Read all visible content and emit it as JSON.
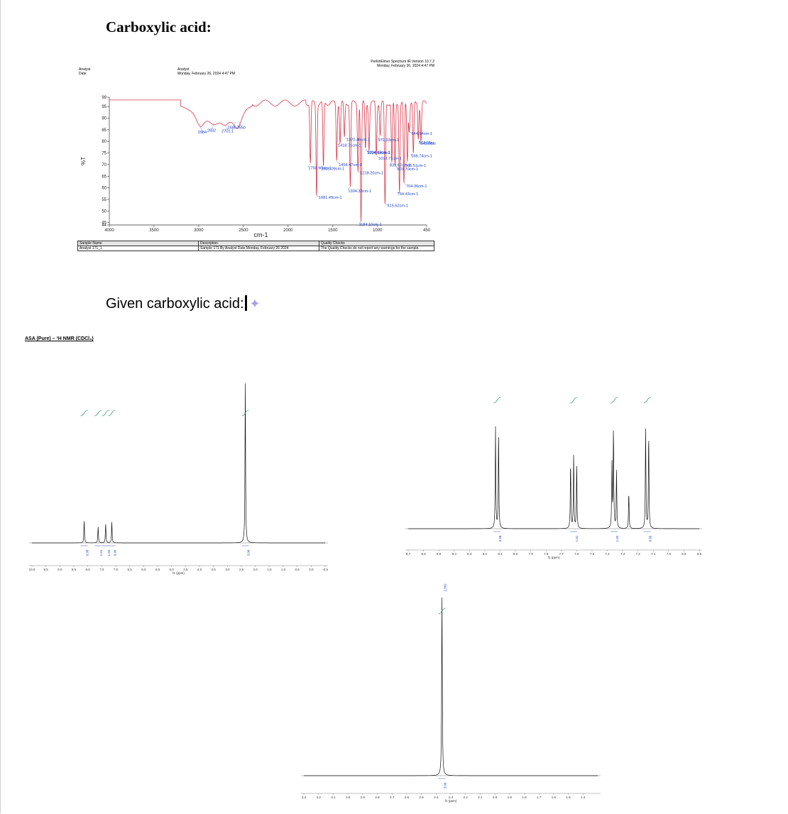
{
  "document": {
    "heading": "Carboxylic acid:",
    "subheading": "Given carboxylic acid:"
  },
  "ir": {
    "header_right_line1": "PerkinElmer Spectrum IR Version 10.7.2",
    "header_right_line2": "Monday, February 26, 2024 4:47 PM",
    "analyst_label": "Analyst",
    "date_label": "Date",
    "analyst_value": "Analyst",
    "date_value": "Monday, February 26, 2024 4:47 PM",
    "table": {
      "headers": [
        "Sample Name",
        "Description",
        "Quality Checks"
      ],
      "row": [
        "Analyst 171_1",
        "Sample 171 By Analyst Date Monday, February 26 2024",
        "The Quality Checks do not report any warnings for the sample."
      ]
    }
  },
  "nmr": {
    "title": "ASA (Pure) – ¹H NMR (CDCl₃)",
    "xlabel": "f1 (ppm)"
  },
  "chart_data": [
    {
      "type": "line",
      "title": "",
      "xlabel": "cm-1",
      "ylabel": "%T",
      "xlim": [
        4000,
        450
      ],
      "ylim": [
        44,
        99
      ],
      "x_ticks": [
        "4000",
        "3500",
        "3000",
        "2500",
        "2000",
        "1500",
        "1000",
        "450"
      ],
      "y_ticks": [
        "99",
        "95",
        "90",
        "85",
        "80",
        "75",
        "70",
        "65",
        "60",
        "55",
        "50",
        "45",
        "44"
      ],
      "color": "#d9364a",
      "peaks": [
        {
          "x": 2984,
          "y": 86.5,
          "label": "2984"
        },
        {
          "x": 2832,
          "y": 87.2,
          "label": "2832"
        },
        {
          "x": 2701,
          "y": 87.0,
          "label": "2701.1"
        },
        {
          "x": 2586,
          "y": 88.4,
          "label": "2586.7"
        },
        {
          "x": 2550,
          "y": 88.5,
          "label": "2550"
        },
        {
          "x": 1750.9,
          "y": 70.5,
          "label": "1750.90cm-1"
        },
        {
          "x": 1681.49,
          "y": 56.5,
          "label": "1681.49cm-1"
        },
        {
          "x": 1605.09,
          "y": 69.5,
          "label": "1605.09cm-1"
        },
        {
          "x": 1456.47,
          "y": 71.8,
          "label": "1456.47cm-1"
        },
        {
          "x": 1418.71,
          "y": 79.0,
          "label": "1418.71cm-1"
        },
        {
          "x": 1370.46,
          "y": 82.0,
          "label": "1370.46cm-1"
        },
        {
          "x": 1304.33,
          "y": 60.5,
          "label": "1304.33cm-1"
        },
        {
          "x": 1218.2,
          "y": 67.0,
          "label": "1218.20cm-1"
        },
        {
          "x": 1184.1,
          "y": 45.5,
          "label": "1184.10cm-1"
        },
        {
          "x": 1134.94,
          "y": 77.0,
          "label": "1134.94cm-1"
        },
        {
          "x": 1094.42,
          "y": 76.0,
          "label": "1094.42cm-1"
        },
        {
          "x": 1012.71,
          "y": 74.0,
          "label": "1012.71cm-1"
        },
        {
          "x": 970.03,
          "y": 82.5,
          "label": "970.03cm-1"
        },
        {
          "x": 915.62,
          "y": 53.0,
          "label": "915.62cm-1"
        },
        {
          "x": 839.67,
          "y": 71.0,
          "label": "839.67cm-1"
        },
        {
          "x": 803.7,
          "y": 70.0,
          "label": "803.70cm-1"
        },
        {
          "x": 754.43,
          "y": 58.0,
          "label": "754.43cm-1"
        },
        {
          "x": 704.36,
          "y": 62.0,
          "label": "704.36cm-1"
        },
        {
          "x": 666.51,
          "y": 71.5,
          "label": "666.51cm-1"
        },
        {
          "x": 644.64,
          "y": 84.0,
          "label": "644.64cm-1"
        },
        {
          "x": 598.74,
          "y": 75.0,
          "label": "598.74cm-1"
        },
        {
          "x": 543.06,
          "y": 81.0,
          "label": "543.06cm"
        },
        {
          "x": 513.55,
          "y": 80.0,
          "label": "513.55cr"
        }
      ]
    },
    {
      "type": "line",
      "title": "ASA (Pure) – ¹H NMR (CDCl₃)",
      "xlabel": "f1 (ppm)",
      "xlim": [
        10.0,
        -0.5
      ],
      "x_ticks": [
        "10.0",
        "9.5",
        "9.0",
        "8.5",
        "8.0",
        "7.5",
        "7.0",
        "6.5",
        "6.0",
        "5.5",
        "5.0",
        "4.5",
        "4.0",
        "3.5",
        "3.0",
        "2.5",
        "2.0",
        "1.5",
        "1.0",
        "0.5",
        "0.0",
        "-0.5"
      ],
      "peaks": [
        {
          "ppm": 8.13,
          "height": 0.14
        },
        {
          "ppm": 7.63,
          "height": 0.1
        },
        {
          "ppm": 7.36,
          "height": 0.12
        },
        {
          "ppm": 7.14,
          "height": 0.13
        },
        {
          "ppm": 2.36,
          "height": 1.0
        }
      ],
      "integrals": [
        "0.98",
        "1.01",
        "1.02",
        "0.96",
        "3.00"
      ]
    },
    {
      "type": "line",
      "title": "",
      "xlabel": "f1 (ppm)",
      "xlim": [
        8.7,
        6.8
      ],
      "x_ticks": [
        "8.7",
        "8.6",
        "8.5",
        "8.4",
        "8.3",
        "8.2",
        "8.1",
        "8.0",
        "7.9",
        "7.8",
        "7.7",
        "7.6",
        "7.5",
        "7.4",
        "7.3",
        "7.2",
        "7.1",
        "7.0",
        "6.9",
        "6.8"
      ],
      "peaks": [
        {
          "ppm": 8.13,
          "height": 0.92
        },
        {
          "ppm": 8.11,
          "height": 0.88
        },
        {
          "ppm": 7.64,
          "height": 0.6
        },
        {
          "ppm": 7.62,
          "height": 0.66
        },
        {
          "ppm": 7.6,
          "height": 0.58
        },
        {
          "ppm": 7.37,
          "height": 0.58
        },
        {
          "ppm": 7.36,
          "height": 0.9
        },
        {
          "ppm": 7.34,
          "height": 0.52
        },
        {
          "ppm": 7.26,
          "height": 0.33
        },
        {
          "ppm": 7.15,
          "height": 0.9
        },
        {
          "ppm": 7.13,
          "height": 0.86
        }
      ],
      "integrals": [
        "0.98",
        "1.01",
        "1.02",
        "0.96"
      ]
    },
    {
      "type": "line",
      "title": "",
      "xlabel": "f1 (ppm)",
      "xlim": [
        3.3,
        1.3
      ],
      "x_ticks": [
        "3.3",
        "3.2",
        "3.1",
        "3.0",
        "2.9",
        "2.8",
        "2.7",
        "2.6",
        "2.5",
        "2.4",
        "2.3",
        "2.2",
        "2.1",
        "2.0",
        "1.9",
        "1.8",
        "1.7",
        "1.6",
        "1.5",
        "1.4"
      ],
      "peaks": [
        {
          "ppm": 2.36,
          "height": 1.0
        }
      ],
      "integrals": [
        "3.00"
      ],
      "peak_label": "2.362"
    }
  ]
}
